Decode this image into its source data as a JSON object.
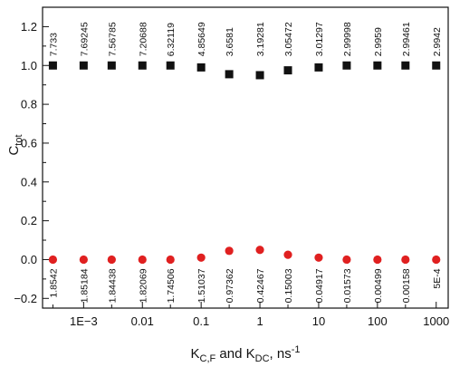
{
  "chart_data": {
    "type": "scatter",
    "x_scale": "log",
    "xlim": [
      0.0002,
      1600
    ],
    "ylim": [
      -0.25,
      1.3
    ],
    "x_ticks": [
      {
        "value": 0.001,
        "label": "1E−3"
      },
      {
        "value": 0.01,
        "label": "0.01"
      },
      {
        "value": 0.1,
        "label": "0.1"
      },
      {
        "value": 1,
        "label": "1"
      },
      {
        "value": 10,
        "label": "10"
      },
      {
        "value": 100,
        "label": "100"
      },
      {
        "value": 1000,
        "label": "1000"
      }
    ],
    "y_ticks": [
      {
        "value": -0.2,
        "label": "−0.2"
      },
      {
        "value": 0.0,
        "label": "0.0"
      },
      {
        "value": 0.2,
        "label": "0.2"
      },
      {
        "value": 0.4,
        "label": "0.4"
      },
      {
        "value": 0.6,
        "label": "0.6"
      },
      {
        "value": 0.8,
        "label": "0.8"
      },
      {
        "value": 1.0,
        "label": "1.0"
      },
      {
        "value": 1.2,
        "label": "1.2"
      }
    ],
    "ylabel": {
      "main": "C",
      "sub": "tot"
    },
    "xlabel": {
      "p1": "K",
      "s1": "C,F",
      "p2": " and K",
      "s2": "DC",
      "p3": ", ns",
      "sup": "-1"
    },
    "grid": false,
    "series": [
      {
        "marker": "square",
        "color": "#111111",
        "points": [
          {
            "x": 0.0003,
            "y": 1.0,
            "label": "7.733"
          },
          {
            "x": 0.001,
            "y": 1.0,
            "label": "7.69245"
          },
          {
            "x": 0.003,
            "y": 1.0,
            "label": "7.56785"
          },
          {
            "x": 0.01,
            "y": 1.0,
            "label": "7.20688"
          },
          {
            "x": 0.03,
            "y": 1.0,
            "label": "6.32119"
          },
          {
            "x": 0.1,
            "y": 0.99,
            "label": "4.85649"
          },
          {
            "x": 0.3,
            "y": 0.955,
            "label": "3.6581"
          },
          {
            "x": 1,
            "y": 0.95,
            "label": "3.19281"
          },
          {
            "x": 3,
            "y": 0.975,
            "label": "3.05472"
          },
          {
            "x": 10,
            "y": 0.99,
            "label": "3.01297"
          },
          {
            "x": 30,
            "y": 1.0,
            "label": "2.99998"
          },
          {
            "x": 100,
            "y": 1.0,
            "label": "2.9959"
          },
          {
            "x": 300,
            "y": 1.0,
            "label": "2.99461"
          },
          {
            "x": 1000,
            "y": 1.0,
            "label": "2.9942"
          }
        ]
      },
      {
        "marker": "circle",
        "color": "#e02020",
        "points": [
          {
            "x": 0.0003,
            "y": 0.0,
            "label": "1.8542"
          },
          {
            "x": 0.001,
            "y": 0.0,
            "label": "1.85184"
          },
          {
            "x": 0.003,
            "y": 0.0,
            "label": "1.84438"
          },
          {
            "x": 0.01,
            "y": 0.0,
            "label": "1.82069"
          },
          {
            "x": 0.03,
            "y": 0.0,
            "label": "1.74506"
          },
          {
            "x": 0.1,
            "y": 0.01,
            "label": "1.51037"
          },
          {
            "x": 0.3,
            "y": 0.045,
            "label": "0.97362"
          },
          {
            "x": 1,
            "y": 0.05,
            "label": "0.42467"
          },
          {
            "x": 3,
            "y": 0.025,
            "label": "0.15003"
          },
          {
            "x": 10,
            "y": 0.01,
            "label": "0.04917"
          },
          {
            "x": 30,
            "y": 0.0,
            "label": "0.01573"
          },
          {
            "x": 100,
            "y": 0.0,
            "label": "0.00499"
          },
          {
            "x": 300,
            "y": 0.0,
            "label": "0.00158"
          },
          {
            "x": 1000,
            "y": 0.0,
            "label": "5E-4"
          }
        ]
      }
    ]
  }
}
